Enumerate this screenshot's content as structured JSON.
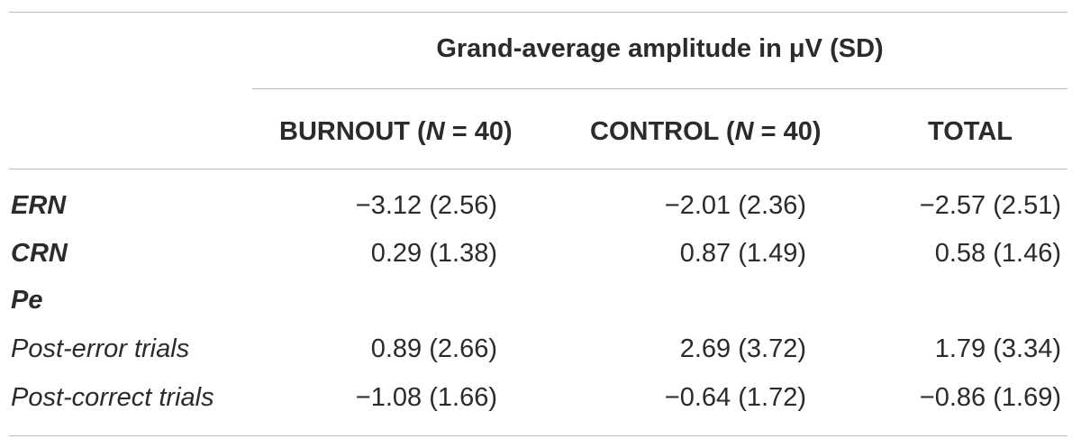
{
  "table": {
    "group_header": "Grand-average amplitude in μV (SD)",
    "columns": [
      {
        "pre": "BURNOUT (",
        "italic": "N",
        "post": " = 40)"
      },
      {
        "pre": "CONTROL (",
        "italic": "N",
        "post": " = 40)"
      },
      {
        "pre": "TOTAL",
        "italic": "",
        "post": ""
      }
    ],
    "rows": [
      {
        "label": "ERN",
        "style": "bold-italic",
        "values": [
          "−3.12 (2.56)",
          "−2.01 (2.36)",
          "−2.57 (2.51)"
        ]
      },
      {
        "label": "CRN",
        "style": "bold-italic",
        "values": [
          "0.29 (1.38)",
          "0.87 (1.49)",
          "0.58 (1.46)"
        ]
      },
      {
        "label": "Pe",
        "style": "bold-italic",
        "values": [
          "",
          "",
          ""
        ]
      },
      {
        "label": "Post-error trials",
        "style": "italic",
        "values": [
          "0.89 (2.66)",
          "2.69 (3.72)",
          "1.79 (3.34)"
        ]
      },
      {
        "label": "Post-correct trials",
        "style": "italic",
        "values": [
          "−1.08 (1.66)",
          "−0.64 (1.72)",
          "−0.86 (1.69)"
        ]
      }
    ]
  }
}
